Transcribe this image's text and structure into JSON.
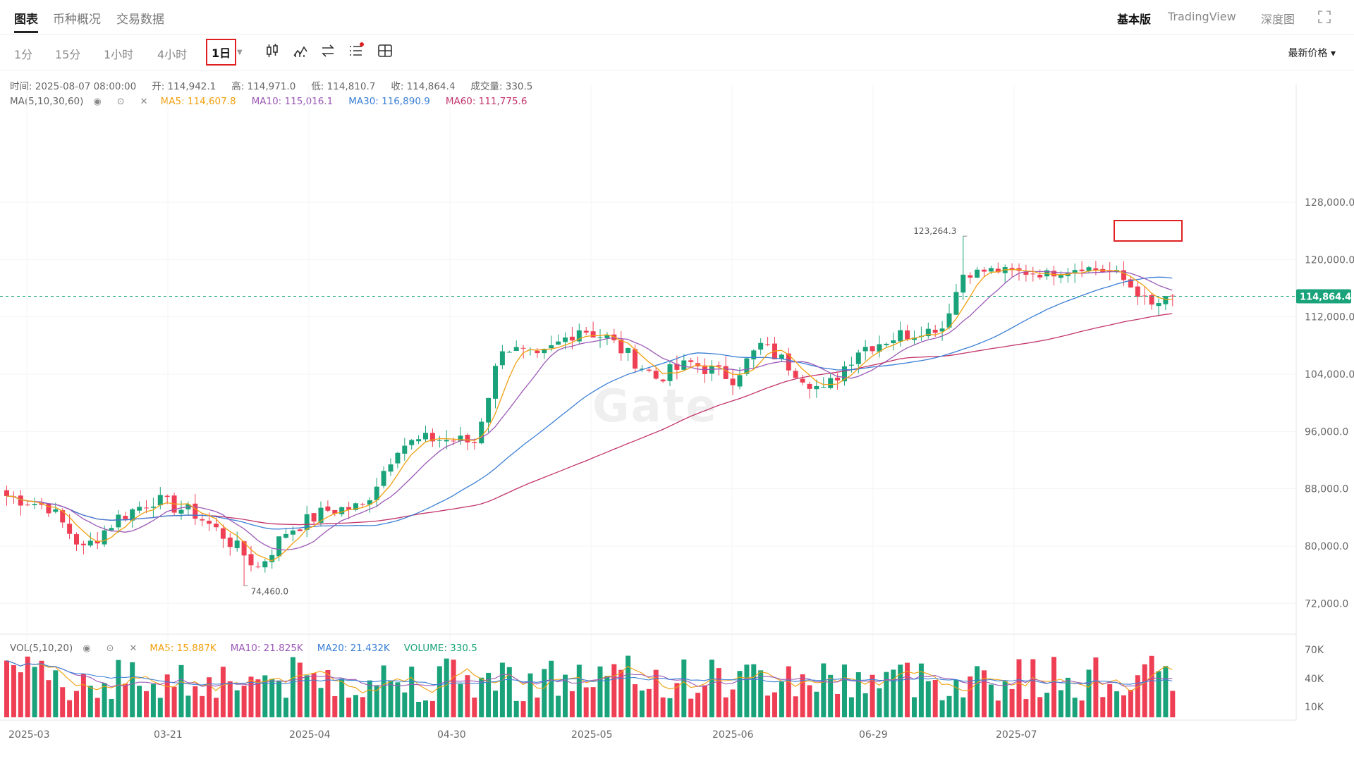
{
  "nav": {
    "tabs": [
      "图表",
      "币种概况",
      "交易数据"
    ],
    "right": [
      "基本版",
      "TradingView",
      "深度图"
    ]
  },
  "toolbar": {
    "intervals": [
      "1分",
      "15分",
      "1小时",
      "4小时",
      "1日"
    ],
    "selected": "1日",
    "price_type": "最新价格 ▾"
  },
  "ohlc": {
    "time": "时间: 2025-08-07 08:00:00",
    "open": "开: 114,942.1",
    "high": "高: 114,971.0",
    "low": "低: 114,810.7",
    "close": "收: 114,864.4",
    "volume": "成交量: 330.5"
  },
  "ma": {
    "label": "MA(5,10,30,60)",
    "ma5": "MA5: 114,607.8",
    "ma10": "MA10: 115,016.1",
    "ma30": "MA30: 116,890.9",
    "ma60": "MA60: 111,775.6"
  },
  "vol": {
    "label": "VOL(5,10,20)",
    "ma5": "MA5: 15.887K",
    "ma10": "MA10: 21.825K",
    "ma20": "MA20: 21.432K",
    "volume": "VOLUME: 330.5"
  },
  "watermark": "Gate",
  "colors": {
    "up": "#1aa37a",
    "down": "#ef3f55",
    "ma5": "#f0a010",
    "ma10": "#9b59b6",
    "ma30": "#3a7fd5",
    "ma60": "#c2336a",
    "last": "#1aa37a"
  },
  "chart_data": {
    "type": "candlestick",
    "x_labels": [
      "2025-03",
      "03-21",
      "2025-04",
      "04-30",
      "2025-05",
      "2025-06",
      "06-29",
      "2025-07"
    ],
    "price_ticks": [
      128000,
      120000,
      112000,
      104000,
      96000,
      88000,
      80000,
      72000
    ],
    "price_tick_labels": [
      "128,000.0",
      "120,000.0",
      "112,000.0",
      "104,000.0",
      "96,000.0",
      "88,000.0",
      "80,000.0",
      "72,000.0"
    ],
    "price_range": [
      70000,
      130000
    ],
    "volume_ticks": [
      "70K",
      "40K",
      "10K"
    ],
    "last_price": 114864.4,
    "last_price_label": "114,864.4",
    "high_marker": {
      "value": 123264.3,
      "label": "123,264.3"
    },
    "low_marker": {
      "value": 74460.0,
      "label": "74,460.0"
    },
    "grid": true,
    "close_anchors": [
      [
        0,
        87000
      ],
      [
        6,
        85500
      ],
      [
        11,
        79500
      ],
      [
        16,
        84000
      ],
      [
        21,
        86500
      ],
      [
        27,
        84500
      ],
      [
        31,
        81500
      ],
      [
        36,
        77000
      ],
      [
        40,
        82000
      ],
      [
        46,
        85000
      ],
      [
        51,
        85500
      ],
      [
        56,
        94000
      ],
      [
        61,
        95000
      ],
      [
        67,
        94500
      ],
      [
        71,
        108000
      ],
      [
        76,
        106000
      ],
      [
        82,
        110500
      ],
      [
        86,
        109000
      ],
      [
        93,
        103500
      ],
      [
        98,
        105500
      ],
      [
        104,
        103500
      ],
      [
        108,
        108000
      ],
      [
        111,
        106000
      ],
      [
        117,
        101500
      ],
      [
        122,
        107500
      ],
      [
        128,
        109500
      ],
      [
        134,
        110500
      ],
      [
        137,
        118000
      ],
      [
        141,
        118500
      ],
      [
        149,
        118000
      ],
      [
        154,
        119000
      ],
      [
        159,
        118000
      ],
      [
        164,
        113500
      ],
      [
        167,
        114800
      ]
    ]
  }
}
